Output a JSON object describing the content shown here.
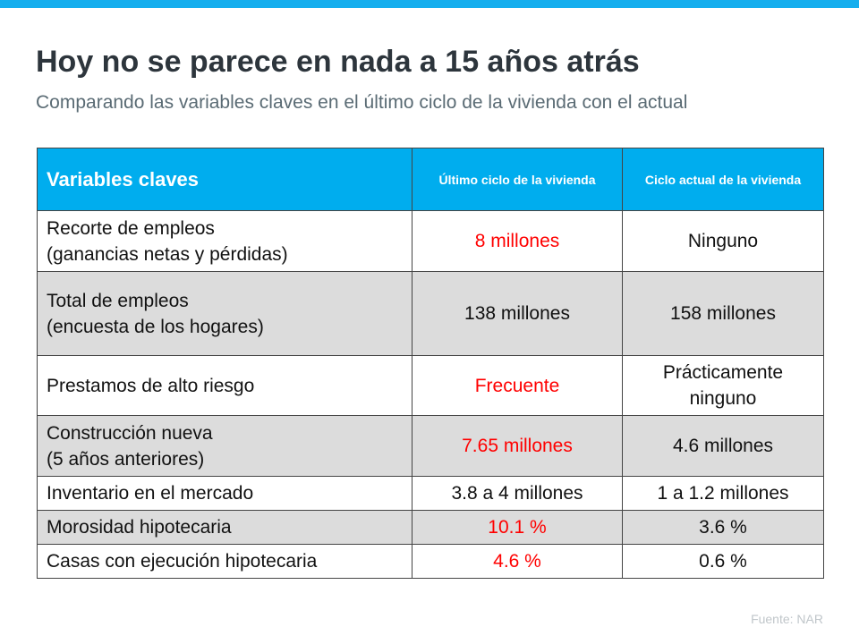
{
  "title": "Hoy no se parece en nada a 15 años atrás",
  "subtitle": "Comparando las variables claves en el último ciclo de la vivienda con el actual",
  "table": {
    "headers": [
      "Variables claves",
      "Último ciclo de la vivienda",
      "Ciclo actual de la vivienda"
    ],
    "rows": [
      {
        "label": [
          "Recorte de empleos",
          "(ganancias netas y pérdidas)"
        ],
        "last": "8 millones",
        "last_red": true,
        "current": [
          "Ninguno"
        ]
      },
      {
        "label": [
          "Total de empleos",
          "(encuesta de los hogares)"
        ],
        "last": "138 millones",
        "last_red": false,
        "current": [
          "158 millones"
        ]
      },
      {
        "label": [
          "Prestamos de alto riesgo"
        ],
        "last": "Frecuente",
        "last_red": true,
        "current": [
          "Prácticamente",
          "ninguno"
        ]
      },
      {
        "label": [
          "Construcción nueva",
          "(5 años anteriores)"
        ],
        "last": "7.65 millones",
        "last_red": true,
        "current": [
          "4.6 millones"
        ]
      },
      {
        "label": [
          "Inventario en el mercado"
        ],
        "last": "3.8 a 4 millones",
        "last_red": false,
        "current": [
          "1 a 1.2 millones"
        ]
      },
      {
        "label": [
          "Morosidad hipotecaria"
        ],
        "last": "10.1 %",
        "last_red": true,
        "current": [
          "3.6 %"
        ]
      },
      {
        "label": [
          "Casas con ejecución hipotecaria"
        ],
        "last": "4.6 %",
        "last_red": true,
        "current": [
          "0.6 %"
        ]
      }
    ]
  },
  "source": "Fuente:  NAR",
  "colors": {
    "accent": "#00adee",
    "highlight": "#ff0000",
    "row_gray": "#dcdcdc"
  }
}
